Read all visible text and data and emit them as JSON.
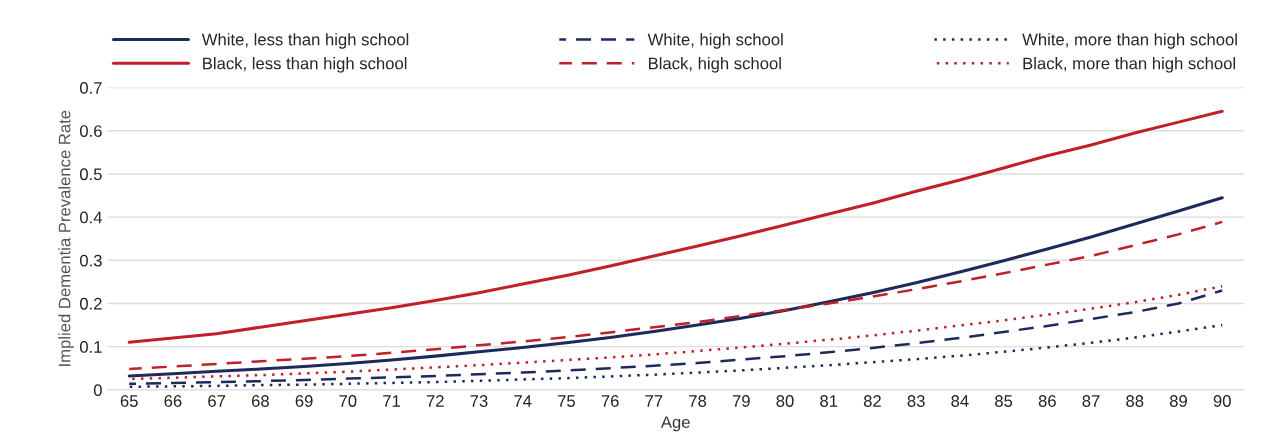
{
  "chart_data": {
    "type": "line",
    "xlabel": "Age",
    "ylabel": "Implied Dementia Prevalence Rate",
    "categories": [
      "65",
      "66",
      "67",
      "68",
      "69",
      "70",
      "71",
      "72",
      "73",
      "74",
      "75",
      "76",
      "77",
      "78",
      "79",
      "80",
      "81",
      "82",
      "83",
      "84",
      "85",
      "86",
      "87",
      "88",
      "89",
      "90"
    ],
    "series": [
      {
        "name": "White, less than high school",
        "color": "#1f2a5c",
        "line_style": "solid",
        "values": [
          0.032,
          0.037,
          0.043,
          0.048,
          0.054,
          0.061,
          0.069,
          0.078,
          0.088,
          0.098,
          0.109,
          0.121,
          0.135,
          0.15,
          0.166,
          0.184,
          0.204,
          0.225,
          0.248,
          0.273,
          0.299,
          0.326,
          0.354,
          0.384,
          0.414,
          0.445
        ]
      },
      {
        "name": "White, high school",
        "color": "#1f2a5c",
        "line_style": "dashed",
        "values": [
          0.014,
          0.016,
          0.018,
          0.02,
          0.023,
          0.026,
          0.029,
          0.032,
          0.036,
          0.04,
          0.045,
          0.05,
          0.056,
          0.062,
          0.07,
          0.078,
          0.087,
          0.097,
          0.108,
          0.12,
          0.134,
          0.148,
          0.164,
          0.18,
          0.2,
          0.23
        ]
      },
      {
        "name": "White, more than high school",
        "color": "#1f2a5c",
        "line_style": "dotted",
        "values": [
          0.007,
          0.008,
          0.009,
          0.011,
          0.012,
          0.014,
          0.016,
          0.018,
          0.021,
          0.024,
          0.027,
          0.031,
          0.035,
          0.04,
          0.045,
          0.051,
          0.057,
          0.064,
          0.071,
          0.079,
          0.088,
          0.098,
          0.109,
          0.121,
          0.135,
          0.15
        ]
      },
      {
        "name": "Black, less than high school",
        "color": "#c0202a",
        "line_style": "solid",
        "values": [
          0.11,
          0.12,
          0.13,
          0.145,
          0.16,
          0.175,
          0.19,
          0.207,
          0.225,
          0.245,
          0.265,
          0.287,
          0.31,
          0.333,
          0.357,
          0.382,
          0.407,
          0.432,
          0.46,
          0.486,
          0.514,
          0.542,
          0.567,
          0.595,
          0.62,
          0.645
        ]
      },
      {
        "name": "Black, high school",
        "color": "#c0202a",
        "line_style": "dashed",
        "values": [
          0.048,
          0.054,
          0.06,
          0.066,
          0.072,
          0.078,
          0.086,
          0.094,
          0.103,
          0.112,
          0.122,
          0.133,
          0.145,
          0.157,
          0.171,
          0.185,
          0.2,
          0.216,
          0.233,
          0.251,
          0.27,
          0.29,
          0.31,
          0.335,
          0.36,
          0.389
        ]
      },
      {
        "name": "Black, more than high school",
        "color": "#c0202a",
        "line_style": "dotted",
        "values": [
          0.025,
          0.028,
          0.031,
          0.034,
          0.038,
          0.042,
          0.047,
          0.052,
          0.057,
          0.063,
          0.069,
          0.075,
          0.082,
          0.09,
          0.098,
          0.107,
          0.116,
          0.126,
          0.137,
          0.149,
          0.161,
          0.174,
          0.188,
          0.203,
          0.22,
          0.24
        ]
      }
    ],
    "ylim": [
      0,
      0.7
    ],
    "yticks": [
      0,
      0.1,
      0.2,
      0.3,
      0.4,
      0.5,
      0.6,
      0.7
    ],
    "grid": "y",
    "legend": "top",
    "marker": "none"
  }
}
